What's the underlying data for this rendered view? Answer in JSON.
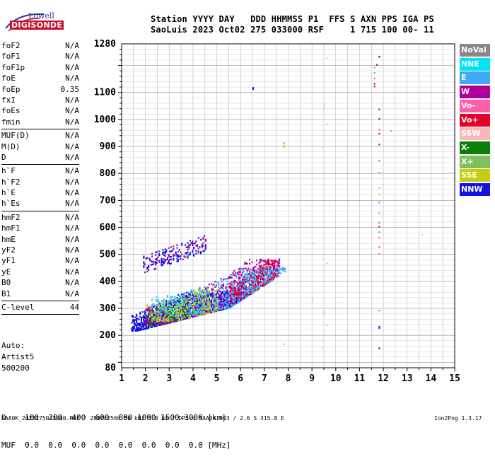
{
  "logo": {
    "line1": "Lowell",
    "line2": "DIGISONDE"
  },
  "header": {
    "line1": "Station YYYY DAY   DDD HHMMSS P1  FFS S AXN PPS IGA PS",
    "line2": "SaoLuis 2023 Oct02 275 033000 RSF     1 715 100 00- 11"
  },
  "params_group1": [
    {
      "name": "foF2",
      "value": "N/A"
    },
    {
      "name": "foF1",
      "value": "N/A"
    },
    {
      "name": "foF1p",
      "value": "N/A"
    },
    {
      "name": "foE",
      "value": "N/A"
    },
    {
      "name": "foEp",
      "value": "0.35"
    },
    {
      "name": "fxI",
      "value": "N/A"
    },
    {
      "name": "foEs",
      "value": "N/A"
    },
    {
      "name": "fmin",
      "value": "N/A"
    }
  ],
  "params_group2": [
    {
      "name": "MUF(D)",
      "value": "N/A"
    },
    {
      "name": "M(D)",
      "value": "N/A"
    },
    {
      "name": "D",
      "value": "N/A"
    }
  ],
  "params_group3": [
    {
      "name": "h`F",
      "value": "N/A"
    },
    {
      "name": "h`F2",
      "value": "N/A"
    },
    {
      "name": "h`E",
      "value": "N/A"
    },
    {
      "name": "h`Es",
      "value": "N/A"
    }
  ],
  "params_group4": [
    {
      "name": "hmF2",
      "value": "N/A"
    },
    {
      "name": "hmF1",
      "value": "N/A"
    },
    {
      "name": "hmE",
      "value": "N/A"
    },
    {
      "name": "yF2",
      "value": "N/A"
    },
    {
      "name": "yF1",
      "value": "N/A"
    },
    {
      "name": "yE",
      "value": "N/A"
    },
    {
      "name": "B0",
      "value": "N/A"
    },
    {
      "name": "B1",
      "value": "N/A"
    }
  ],
  "params_group5": [
    {
      "name": "C-level",
      "value": "44"
    }
  ],
  "auto": {
    "line1": "Auto:",
    "line2": "Artist5",
    "line3": "500200"
  },
  "legend": [
    {
      "label": "NoVal",
      "bg": "#888888",
      "fg": "#ffffff"
    },
    {
      "label": "NNE",
      "bg": "#00e5f5",
      "fg": "#ffffff"
    },
    {
      "label": "E",
      "bg": "#3fa9f5",
      "fg": "#ffffff"
    },
    {
      "label": "W",
      "bg": "#b0009b",
      "fg": "#ffffff"
    },
    {
      "label": "Vo-",
      "bg": "#ff5fa8",
      "fg": "#ffffff"
    },
    {
      "label": "Vo+",
      "bg": "#e0002a",
      "fg": "#ffffff"
    },
    {
      "label": "SSW",
      "bg": "#f7b8b8",
      "fg": "#ffffff"
    },
    {
      "label": "X-",
      "bg": "#0a7f0a",
      "fg": "#ffffff"
    },
    {
      "label": "X+",
      "bg": "#7fbf5f",
      "fg": "#ffffff"
    },
    {
      "label": "SSE",
      "bg": "#c8cc10",
      "fg": "#ffffff"
    },
    {
      "label": "NNW",
      "bg": "#1414e0",
      "fg": "#ffffff"
    }
  ],
  "muf_table": {
    "line1": "D    100  200  400  600  800 1000 1500 3000 [km]",
    "line2": "MUF  0.0  0.0  0.0  0.0  0.0  0.0  0.0  0.0 [MHz]"
  },
  "footer": {
    "left": "SAA0K_2023275033000.RSF / 280fx256h 50 kHz 5.0 km / DPS-4 SAA0K 903 / 2.6 S 315.8 E",
    "right": "Ion2Png 1.3.17"
  },
  "chart_data": {
    "type": "scatter",
    "xlim": [
      1,
      15
    ],
    "ylim": [
      80,
      1280
    ],
    "x_ticks": [
      1,
      2,
      3,
      4,
      5,
      6,
      7,
      8,
      9,
      10,
      11,
      12,
      13,
      14,
      15
    ],
    "y_tick_labels": [
      {
        "value": 80,
        "label": "80"
      },
      {
        "value": 200,
        "label": "200"
      },
      {
        "value": 300,
        "label": "300"
      },
      {
        "value": 400,
        "label": "400"
      },
      {
        "value": 500,
        "label": "500"
      },
      {
        "value": 600,
        "label": "600"
      },
      {
        "value": 700,
        "label": "700"
      },
      {
        "value": 800,
        "label": "800"
      },
      {
        "value": 900,
        "label": "900"
      },
      {
        "value": 1000,
        "label": "1000"
      },
      {
        "value": 1100,
        "label": "1100"
      },
      {
        "value": 1280,
        "label": "1280"
      }
    ],
    "grid": true,
    "legend_position": "right",
    "series_regions": [
      {
        "name": "NNW",
        "color": "#1414e0",
        "region": {
          "x": [
            1.4,
            7.0
          ],
          "y": [
            215,
            360
          ]
        },
        "density": 0.85
      },
      {
        "name": "W",
        "color": "#b0009b",
        "region": {
          "x": [
            2.0,
            7.6
          ],
          "y": [
            240,
            480
          ]
        },
        "density": 0.5
      },
      {
        "name": "Vo+",
        "color": "#e0002a",
        "region": {
          "x": [
            5.5,
            7.4
          ],
          "y": [
            330,
            480
          ]
        },
        "density": 0.55
      },
      {
        "name": "E",
        "color": "#3fa9f5",
        "region": {
          "x": [
            2.2,
            8.3
          ],
          "y": [
            270,
            450
          ]
        },
        "density": 0.35
      },
      {
        "name": "NNE",
        "color": "#00e5f5",
        "region": {
          "x": [
            2.4,
            4.4
          ],
          "y": [
            280,
            560
          ]
        },
        "density": 0.2
      },
      {
        "name": "X+",
        "color": "#7fbf5f",
        "region": {
          "x": [
            2.0,
            4.8
          ],
          "y": [
            250,
            400
          ]
        },
        "density": 0.2
      },
      {
        "name": "SSE",
        "color": "#c8cc10",
        "region": {
          "x": [
            2.0,
            5.0
          ],
          "y": [
            250,
            380
          ]
        },
        "density": 0.2
      },
      {
        "name": "X-",
        "color": "#0a7f0a",
        "region": {
          "x": [
            2.0,
            4.0
          ],
          "y": [
            230,
            330
          ]
        },
        "density": 0.12
      }
    ],
    "upper_trace": {
      "color": "#1414e0",
      "region": {
        "x": [
          1.9,
          4.5
        ],
        "y": [
          440,
          620
        ]
      },
      "density": 0.25
    },
    "sparse_points": [
      {
        "x": 6.5,
        "y": 1115,
        "color": "#1414e0"
      },
      {
        "x": 6.5,
        "y": 1110,
        "color": "#1414e0"
      },
      {
        "x": 7.8,
        "y": 910,
        "color": "#7fbf5f"
      },
      {
        "x": 7.8,
        "y": 900,
        "color": "#c8cc10"
      },
      {
        "x": 7.8,
        "y": 895,
        "color": "#c8cc10"
      },
      {
        "x": 7.8,
        "y": 165,
        "color": "#c8cc10"
      },
      {
        "x": 9.5,
        "y": 1050,
        "color": "#f7b8b8"
      },
      {
        "x": 9.5,
        "y": 1040,
        "color": "#f7b8b8"
      },
      {
        "x": 9.6,
        "y": 980,
        "color": "#f7b8b8"
      },
      {
        "x": 9.4,
        "y": 895,
        "color": "#f7b8b8"
      },
      {
        "x": 9.6,
        "y": 1225,
        "color": "#f7b8b8"
      },
      {
        "x": 9.0,
        "y": 540,
        "color": "#f7b8b8"
      },
      {
        "x": 9.6,
        "y": 465,
        "color": "#f7b8b8"
      },
      {
        "x": 9.0,
        "y": 325,
        "color": "#f7b8b8"
      },
      {
        "x": 9.0,
        "y": 335,
        "color": "#f7b8b8"
      },
      {
        "x": 9.5,
        "y": 290,
        "color": "#f7b8b8"
      },
      {
        "x": 9.5,
        "y": 280,
        "color": "#f7b8b8"
      },
      {
        "x": 9.6,
        "y": 235,
        "color": "#f7b8b8"
      },
      {
        "x": 9.4,
        "y": 180,
        "color": "#f7b8b8"
      },
      {
        "x": 9.4,
        "y": 150,
        "color": "#f7b8b8"
      },
      {
        "x": 11.8,
        "y": 1230,
        "color": "#1414e0"
      },
      {
        "x": 11.6,
        "y": 1190,
        "color": "#00e5f5"
      },
      {
        "x": 11.6,
        "y": 1170,
        "color": "#3fa9f5"
      },
      {
        "x": 11.6,
        "y": 1150,
        "color": "#ff5fa8"
      },
      {
        "x": 11.6,
        "y": 1130,
        "color": "#b0009b"
      },
      {
        "x": 11.6,
        "y": 1120,
        "color": "#e0002a"
      },
      {
        "x": 11.7,
        "y": 1200,
        "color": "#e0002a"
      },
      {
        "x": 11.8,
        "y": 1035,
        "color": "#b0009b"
      },
      {
        "x": 11.8,
        "y": 1000,
        "color": "#e0002a"
      },
      {
        "x": 11.8,
        "y": 960,
        "color": "#ff5fa8"
      },
      {
        "x": 11.8,
        "y": 945,
        "color": "#e0002a"
      },
      {
        "x": 11.8,
        "y": 905,
        "color": "#b0009b"
      },
      {
        "x": 11.8,
        "y": 845,
        "color": "#3fa9f5"
      },
      {
        "x": 11.8,
        "y": 800,
        "color": "#7fbf5f"
      },
      {
        "x": 11.8,
        "y": 745,
        "color": "#c8cc10"
      },
      {
        "x": 11.8,
        "y": 720,
        "color": "#c8cc10"
      },
      {
        "x": 11.8,
        "y": 690,
        "color": "#3fa9f5"
      },
      {
        "x": 11.8,
        "y": 650,
        "color": "#7fbf5f"
      },
      {
        "x": 11.8,
        "y": 615,
        "color": "#ff5fa8"
      },
      {
        "x": 11.8,
        "y": 600,
        "color": "#e0002a"
      },
      {
        "x": 11.8,
        "y": 580,
        "color": "#3fa9f5"
      },
      {
        "x": 11.8,
        "y": 560,
        "color": "#ff5fa8"
      },
      {
        "x": 11.8,
        "y": 525,
        "color": "#ff5fa8"
      },
      {
        "x": 11.8,
        "y": 500,
        "color": "#ff5fa8"
      },
      {
        "x": 11.8,
        "y": 290,
        "color": "#3fa9f5"
      },
      {
        "x": 11.8,
        "y": 230,
        "color": "#1414e0"
      },
      {
        "x": 11.8,
        "y": 225,
        "color": "#b0009b"
      },
      {
        "x": 11.8,
        "y": 150,
        "color": "#1414e0"
      },
      {
        "x": 12.3,
        "y": 955,
        "color": "#7fbf5f"
      },
      {
        "x": 13.6,
        "y": 570,
        "color": "#f7b8b8"
      }
    ]
  }
}
